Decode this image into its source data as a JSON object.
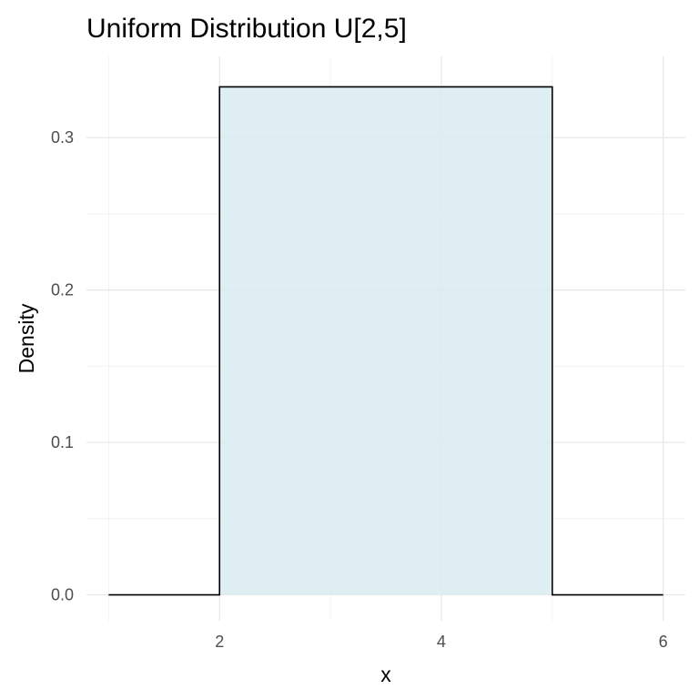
{
  "chart_data": {
    "type": "area",
    "title": "Uniform Distribution U[2,5]",
    "xlabel": "x",
    "ylabel": "Density",
    "xlim": [
      0.8,
      6.2
    ],
    "ylim": [
      -0.017,
      0.3533
    ],
    "x_ticks": [
      2,
      4,
      6
    ],
    "x_tick_labels": [
      "2",
      "4",
      "6"
    ],
    "y_ticks": [
      0.0,
      0.1,
      0.2,
      0.3
    ],
    "y_tick_labels": [
      "0.0",
      "0.1",
      "0.2",
      "0.3"
    ],
    "x_minor_gridlines": [
      1,
      3,
      5
    ],
    "y_minor_gridlines": [
      0.05,
      0.15,
      0.25
    ],
    "grid": true,
    "legend": "none",
    "series": [
      {
        "x": [
          1,
          2,
          2,
          5,
          5,
          6
        ],
        "y": [
          0,
          0,
          0.3333,
          0.3333,
          0,
          0
        ],
        "fill_range": [
          2,
          5
        ],
        "fill_color": "#d8ebf1",
        "line_color": "#000000"
      }
    ]
  }
}
